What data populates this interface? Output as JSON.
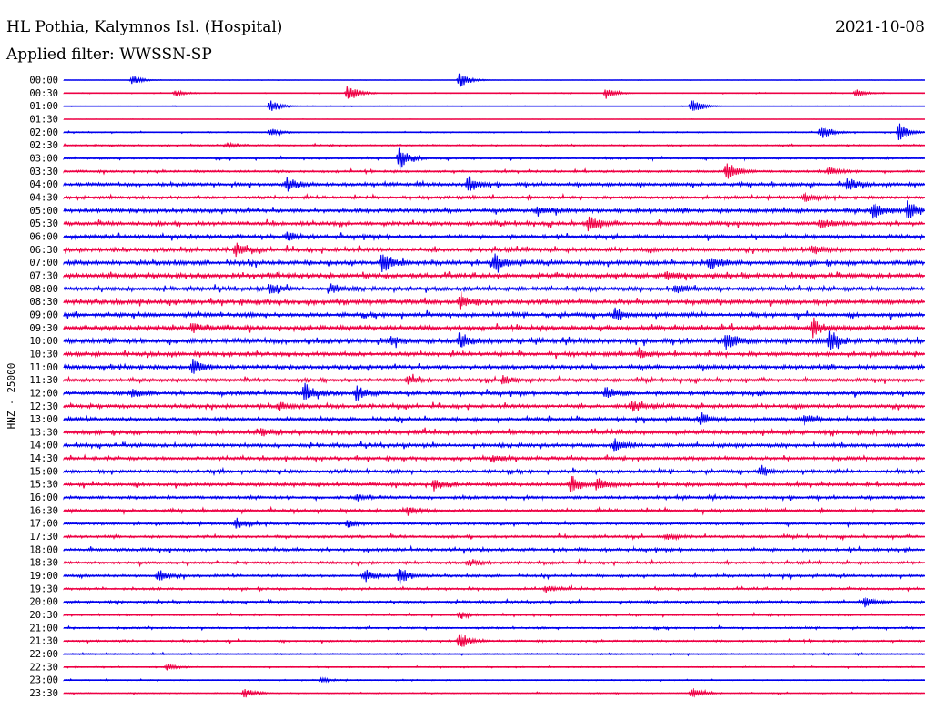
{
  "header": {
    "title": "HL Pothia, Kalymnos Isl. (Hospital)",
    "date": "2021-10-08",
    "filter": "Applied filter: WWSSN-SP"
  },
  "chart_data": {
    "type": "line",
    "ylabel": "HNZ - 25000",
    "row_labels": [
      "00:00",
      "00:30",
      "01:00",
      "01:30",
      "02:00",
      "02:30",
      "03:00",
      "03:30",
      "04:00",
      "04:30",
      "05:00",
      "05:30",
      "06:00",
      "06:30",
      "07:00",
      "07:30",
      "08:00",
      "08:30",
      "09:00",
      "09:30",
      "10:00",
      "10:30",
      "11:00",
      "11:30",
      "12:00",
      "12:30",
      "13:00",
      "13:30",
      "14:00",
      "14:30",
      "15:00",
      "15:30",
      "16:00",
      "16:30",
      "17:00",
      "17:30",
      "18:00",
      "18:30",
      "19:00",
      "19:30",
      "20:00",
      "20:30",
      "21:00",
      "21:30",
      "22:00",
      "22:30",
      "23:00",
      "23:30"
    ],
    "colors": [
      "#0000ee",
      "#ee0044"
    ],
    "noise_level": [
      0.05,
      0.1,
      0.08,
      0.04,
      0.15,
      0.2,
      0.25,
      0.3,
      0.45,
      0.4,
      0.55,
      0.5,
      0.5,
      0.55,
      0.6,
      0.6,
      0.55,
      0.6,
      0.55,
      0.6,
      0.65,
      0.55,
      0.55,
      0.45,
      0.5,
      0.5,
      0.5,
      0.55,
      0.5,
      0.45,
      0.45,
      0.45,
      0.4,
      0.4,
      0.35,
      0.35,
      0.4,
      0.35,
      0.35,
      0.3,
      0.3,
      0.25,
      0.25,
      0.25,
      0.2,
      0.15,
      0.15,
      0.15
    ],
    "events": [
      [
        [
          0.08,
          0.6
        ],
        [
          0.46,
          1.0
        ]
      ],
      [
        [
          0.13,
          0.4
        ],
        [
          0.33,
          1.2
        ],
        [
          0.63,
          0.7
        ],
        [
          0.92,
          0.5
        ]
      ],
      [
        [
          0.24,
          0.8
        ],
        [
          0.73,
          1.0
        ]
      ],
      [],
      [
        [
          0.24,
          0.5
        ],
        [
          0.88,
          0.9
        ],
        [
          0.97,
          1.2
        ]
      ],
      [
        [
          0.19,
          0.3
        ]
      ],
      [
        [
          0.39,
          1.4
        ]
      ],
      [
        [
          0.77,
          1.3
        ],
        [
          0.89,
          0.5
        ]
      ],
      [
        [
          0.26,
          1.0
        ],
        [
          0.47,
          1.0
        ],
        [
          0.91,
          0.8
        ]
      ],
      [
        [
          0.86,
          0.6
        ]
      ],
      [
        [
          0.55,
          0.6
        ],
        [
          0.94,
          1.0
        ],
        [
          0.98,
          1.2
        ]
      ],
      [
        [
          0.61,
          1.1
        ],
        [
          0.88,
          0.6
        ]
      ],
      [
        [
          0.26,
          0.5
        ]
      ],
      [
        [
          0.2,
          0.9
        ],
        [
          0.87,
          0.6
        ]
      ],
      [
        [
          0.37,
          1.4
        ],
        [
          0.5,
          1.0
        ],
        [
          0.75,
          0.8
        ]
      ],
      [
        [
          0.7,
          0.5
        ]
      ],
      [
        [
          0.24,
          0.7
        ],
        [
          0.31,
          0.6
        ],
        [
          0.71,
          0.6
        ]
      ],
      [
        [
          0.46,
          0.8
        ]
      ],
      [
        [
          0.64,
          0.7
        ]
      ],
      [
        [
          0.15,
          0.6
        ],
        [
          0.87,
          1.2
        ]
      ],
      [
        [
          0.38,
          0.6
        ],
        [
          0.46,
          1.0
        ],
        [
          0.77,
          1.1
        ],
        [
          0.89,
          1.2
        ]
      ],
      [
        [
          0.67,
          0.5
        ]
      ],
      [
        [
          0.15,
          0.9
        ]
      ],
      [
        [
          0.4,
          0.5
        ],
        [
          0.51,
          0.6
        ]
      ],
      [
        [
          0.08,
          0.5
        ],
        [
          0.28,
          1.2
        ],
        [
          0.34,
          0.9
        ],
        [
          0.63,
          0.7
        ]
      ],
      [
        [
          0.25,
          0.5
        ],
        [
          0.66,
          0.7
        ]
      ],
      [
        [
          0.74,
          0.7
        ],
        [
          0.86,
          0.6
        ]
      ],
      [
        [
          0.23,
          0.4
        ]
      ],
      [
        [
          0.64,
          0.8
        ]
      ],
      [
        [
          0.5,
          0.4
        ]
      ],
      [
        [
          0.81,
          0.6
        ]
      ],
      [
        [
          0.43,
          0.7
        ],
        [
          0.59,
          1.1
        ],
        [
          0.62,
          0.8
        ]
      ],
      [
        [
          0.34,
          0.4
        ]
      ],
      [
        [
          0.4,
          0.5
        ]
      ],
      [
        [
          0.2,
          0.7
        ],
        [
          0.33,
          0.5
        ]
      ],
      [
        [
          0.7,
          0.4
        ]
      ],
      [],
      [
        [
          0.47,
          0.4
        ]
      ],
      [
        [
          0.11,
          0.7
        ],
        [
          0.35,
          0.8
        ],
        [
          0.39,
          1.1
        ]
      ],
      [
        [
          0.56,
          0.4
        ]
      ],
      [
        [
          0.93,
          0.6
        ]
      ],
      [
        [
          0.46,
          0.4
        ]
      ],
      [],
      [
        [
          0.46,
          1.0
        ]
      ],
      [],
      [
        [
          0.12,
          0.4
        ]
      ],
      [
        [
          0.3,
          0.3
        ]
      ],
      [
        [
          0.21,
          0.6
        ],
        [
          0.73,
          0.7
        ]
      ]
    ]
  }
}
